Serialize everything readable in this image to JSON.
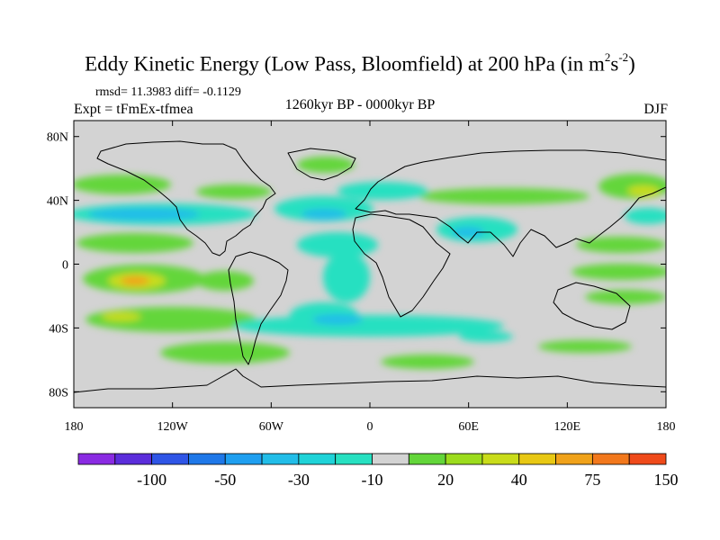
{
  "title": {
    "main": "Eddy Kinetic Energy (Low Pass, Bloomfield) at 200 hPa (in m",
    "sup1": "2",
    "mid": "s",
    "sup2": "-2",
    "end": ")"
  },
  "stats": "rmsd= 11.3983 diff= -0.1129",
  "experiment": "Expt = tFmEx-tfmea",
  "period": "1260kyr BP - 0000kyr BP",
  "season": "DJF",
  "map": {
    "lon_range": [
      -180,
      180
    ],
    "lat_range": [
      -90,
      90
    ],
    "background_color": "#d3d3d3",
    "x_ticks": [
      {
        "value": -180,
        "label": "180"
      },
      {
        "value": -120,
        "label": "120W"
      },
      {
        "value": -60,
        "label": "60W"
      },
      {
        "value": 0,
        "label": "0"
      },
      {
        "value": 60,
        "label": "60E"
      },
      {
        "value": 120,
        "label": "120E"
      },
      {
        "value": 180,
        "label": "180"
      }
    ],
    "y_ticks": [
      {
        "value": 80,
        "label": "80N"
      },
      {
        "value": 40,
        "label": "40N"
      },
      {
        "value": 0,
        "label": "0"
      },
      {
        "value": -40,
        "label": "40S"
      },
      {
        "value": -80,
        "label": "80S"
      }
    ]
  },
  "colorbar": {
    "colors": [
      "#8a2be2",
      "#5b2ddb",
      "#2f55e6",
      "#1f78e8",
      "#1f9ff0",
      "#22bde8",
      "#1fd3d8",
      "#27e0c1",
      "#d3d3d3",
      "#63d63a",
      "#9cdc1d",
      "#c9dc1a",
      "#e8c814",
      "#f0a21a",
      "#f2781c",
      "#ef4a1a"
    ],
    "labels": [
      {
        "after_index": 1,
        "text": "-100"
      },
      {
        "after_index": 3,
        "text": "-50"
      },
      {
        "after_index": 5,
        "text": "-30"
      },
      {
        "after_index": 7,
        "text": "-10"
      },
      {
        "after_index": 9,
        "text": "20"
      },
      {
        "after_index": 11,
        "text": "40"
      },
      {
        "after_index": 13,
        "text": "75"
      },
      {
        "after_index": 15,
        "text": "150"
      }
    ]
  }
}
